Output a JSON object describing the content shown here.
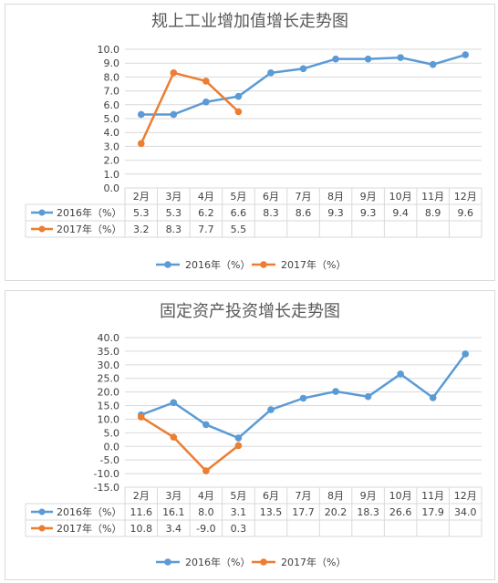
{
  "chart_data": [
    {
      "type": "line",
      "title": "规上工业增加值增长走势图",
      "categories": [
        "2月",
        "3月",
        "4月",
        "5月",
        "6月",
        "7月",
        "8月",
        "9月",
        "10月",
        "11月",
        "12月"
      ],
      "series": [
        {
          "name": "2016年（%）",
          "color": "#5b9bd5",
          "values": [
            5.3,
            5.3,
            6.2,
            6.6,
            8.3,
            8.6,
            9.3,
            9.3,
            9.4,
            8.9,
            9.6
          ],
          "labels": [
            "5.3",
            "5.3",
            "6.2",
            "6.6",
            "8.3",
            "8.6",
            "9.3",
            "9.3",
            "9.4",
            "8.9",
            "9.6"
          ]
        },
        {
          "name": "2017年（%）",
          "color": "#ed7d31",
          "values": [
            3.2,
            8.3,
            7.7,
            5.5,
            null,
            null,
            null,
            null,
            null,
            null,
            null
          ],
          "labels": [
            "3.2",
            "8.3",
            "7.7",
            "5.5",
            "",
            "",
            "",
            "",
            "",
            "",
            ""
          ]
        }
      ],
      "ylim": [
        0,
        10
      ],
      "yticks": [
        "0.0",
        "1.0",
        "2.0",
        "3.0",
        "4.0",
        "5.0",
        "6.0",
        "7.0",
        "8.0",
        "9.0",
        "10.0"
      ],
      "ystep": 1,
      "grid": true,
      "legend": "bottom",
      "data_table": true
    },
    {
      "type": "line",
      "title": "固定资产投资增长走势图",
      "categories": [
        "2月",
        "3月",
        "4月",
        "5月",
        "6月",
        "7月",
        "8月",
        "9月",
        "10月",
        "11月",
        "12月"
      ],
      "series": [
        {
          "name": "2016年（%）",
          "color": "#5b9bd5",
          "values": [
            11.6,
            16.1,
            8.0,
            3.1,
            13.5,
            17.7,
            20.2,
            18.3,
            26.6,
            17.9,
            34.0
          ],
          "labels": [
            "11.6",
            "16.1",
            "8.0",
            "3.1",
            "13.5",
            "17.7",
            "20.2",
            "18.3",
            "26.6",
            "17.9",
            "34.0"
          ]
        },
        {
          "name": "2017年（%）",
          "color": "#ed7d31",
          "values": [
            10.8,
            3.4,
            -9.0,
            0.3,
            null,
            null,
            null,
            null,
            null,
            null,
            null
          ],
          "labels": [
            "10.8",
            "3.4",
            "-9.0",
            "0.3",
            "",
            "",
            "",
            "",
            "",
            "",
            ""
          ]
        }
      ],
      "ylim": [
        -15,
        40
      ],
      "yticks": [
        "-15.0",
        "-10.0",
        "-5.0",
        "0.0",
        "5.0",
        "10.0",
        "15.0",
        "20.0",
        "25.0",
        "30.0",
        "35.0",
        "40.0"
      ],
      "ystep": 5,
      "grid": true,
      "legend": "bottom",
      "data_table": true
    }
  ]
}
